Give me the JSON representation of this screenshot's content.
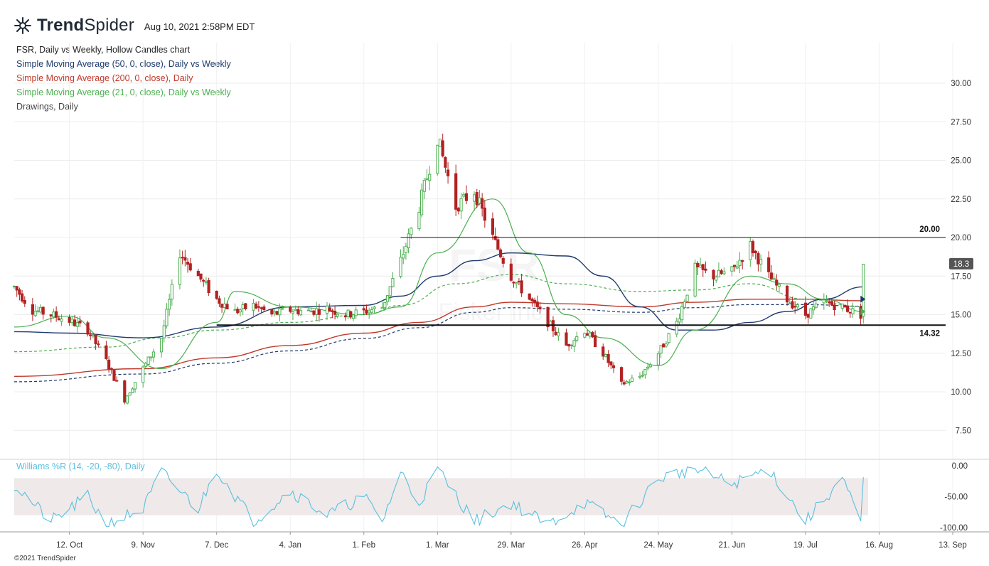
{
  "header": {
    "brand_bold": "Trend",
    "brand_light": "Spider",
    "timestamp": "Aug 10, 2021 2:58PM EDT"
  },
  "legend": [
    {
      "text": "FSR, Daily vs Weekly, Hollow Candles chart",
      "color": "#222222"
    },
    {
      "text": "Simple Moving Average (50, 0, close), Daily vs Weekly",
      "color": "#1f3a6e"
    },
    {
      "text": "Simple Moving Average (200, 0, close), Daily",
      "color": "#c0392b"
    },
    {
      "text": "Simple Moving Average (21, 0, close), Daily vs Weekly",
      "color": "#4caf50"
    },
    {
      "text": "Drawings, Daily",
      "color": "#444444"
    }
  ],
  "watermark": {
    "symbol": "FSR",
    "name": "Fisker Inc"
  },
  "footer": "©2021 TrendSpider",
  "oscillator_label": "Williams %R (14, -20, -80), Daily",
  "colors": {
    "up": "#4caf50",
    "down": "#b22222",
    "sma50": "#1f3a6e",
    "sma200": "#c0392b",
    "sma21": "#4caf50",
    "wr": "#5bc0de",
    "band": "#efe9e9"
  },
  "chart_data": [
    {
      "type": "candlestick",
      "ylim": [
        6,
        32
      ],
      "y_ticks": [
        "30.00",
        "27.50",
        "25.00",
        "22.50",
        "20.00",
        "17.50",
        "15.00",
        "12.50",
        "10.00",
        "7.50"
      ],
      "x_labels": [
        "12. Oct",
        "9. Nov",
        "7. Dec",
        "4. Jan",
        "1. Feb",
        "1. Mar",
        "29. Mar",
        "26. Apr",
        "24. May",
        "21. Jun",
        "19. Jul",
        "16. Aug",
        "13. Sep"
      ],
      "current_price": "18.3",
      "horizontal_lines": [
        {
          "value": 20.0,
          "label": "20.00"
        },
        {
          "value": 14.32,
          "label": "14.32"
        }
      ],
      "price_path": [
        [
          "2020-09-21",
          16.8
        ],
        [
          "2020-09-28",
          15.3
        ],
        [
          "2020-10-05",
          15.0
        ],
        [
          "2020-10-12",
          14.6
        ],
        [
          "2020-10-19",
          14.0
        ],
        [
          "2020-10-26",
          12.0
        ],
        [
          "2020-11-02",
          9.5
        ],
        [
          "2020-11-09",
          11.5
        ],
        [
          "2020-11-16",
          13.5
        ],
        [
          "2020-11-23",
          19.0
        ],
        [
          "2020-11-30",
          17.5
        ],
        [
          "2020-12-07",
          16.0
        ],
        [
          "2020-12-14",
          15.2
        ],
        [
          "2020-12-21",
          15.6
        ],
        [
          "2020-12-28",
          15.0
        ],
        [
          "2021-01-04",
          15.3
        ],
        [
          "2021-01-11",
          15.2
        ],
        [
          "2021-01-18",
          15.4
        ],
        [
          "2021-01-25",
          15.0
        ],
        [
          "2021-02-01",
          15.2
        ],
        [
          "2021-02-08",
          15.5
        ],
        [
          "2021-02-15",
          18.5
        ],
        [
          "2021-02-22",
          22.0
        ],
        [
          "2021-03-01",
          26.5
        ],
        [
          "2021-03-08",
          22.0
        ],
        [
          "2021-03-15",
          23.0
        ],
        [
          "2021-03-22",
          20.0
        ],
        [
          "2021-03-29",
          17.5
        ],
        [
          "2021-04-05",
          16.0
        ],
        [
          "2021-04-12",
          14.5
        ],
        [
          "2021-04-19",
          13.0
        ],
        [
          "2021-04-26",
          14.0
        ],
        [
          "2021-05-03",
          12.5
        ],
        [
          "2021-05-10",
          10.5
        ],
        [
          "2021-05-17",
          11.0
        ],
        [
          "2021-05-24",
          12.5
        ],
        [
          "2021-05-31",
          14.5
        ],
        [
          "2021-06-07",
          18.0
        ],
        [
          "2021-06-14",
          17.5
        ],
        [
          "2021-06-21",
          17.8
        ],
        [
          "2021-06-28",
          19.5
        ],
        [
          "2021-07-05",
          17.5
        ],
        [
          "2021-07-12",
          16.0
        ],
        [
          "2021-07-19",
          15.0
        ],
        [
          "2021-07-26",
          15.8
        ],
        [
          "2021-08-02",
          15.5
        ],
        [
          "2021-08-09",
          15.0
        ],
        [
          "2021-08-10",
          18.3
        ]
      ],
      "sma50": [
        [
          "2020-09-21",
          13.9
        ],
        [
          "2020-10-12",
          13.8
        ],
        [
          "2020-11-09",
          13.5
        ],
        [
          "2020-12-07",
          14.2
        ],
        [
          "2021-01-04",
          15.5
        ],
        [
          "2021-02-01",
          15.6
        ],
        [
          "2021-02-15",
          16.2
        ],
        [
          "2021-03-01",
          17.5
        ],
        [
          "2021-03-15",
          18.5
        ],
        [
          "2021-03-29",
          19.0
        ],
        [
          "2021-04-19",
          18.8
        ],
        [
          "2021-05-03",
          17.5
        ],
        [
          "2021-05-17",
          15.5
        ],
        [
          "2021-05-31",
          14.0
        ],
        [
          "2021-06-14",
          14.0
        ],
        [
          "2021-06-28",
          14.5
        ],
        [
          "2021-07-12",
          15.2
        ],
        [
          "2021-07-26",
          16.0
        ],
        [
          "2021-08-10",
          16.8
        ]
      ],
      "sma200": [
        [
          "2020-09-21",
          11.0
        ],
        [
          "2020-11-09",
          11.5
        ],
        [
          "2020-12-07",
          12.2
        ],
        [
          "2021-01-04",
          13.0
        ],
        [
          "2021-02-01",
          13.8
        ],
        [
          "2021-02-22",
          14.5
        ],
        [
          "2021-03-15",
          15.5
        ],
        [
          "2021-03-29",
          15.8
        ],
        [
          "2021-04-19",
          15.7
        ],
        [
          "2021-05-17",
          15.5
        ],
        [
          "2021-06-07",
          15.8
        ],
        [
          "2021-06-28",
          16.0
        ],
        [
          "2021-07-19",
          16.0
        ],
        [
          "2021-08-10",
          15.9
        ]
      ],
      "sma50_weekly": [
        [
          "2020-09-21",
          12.6
        ],
        [
          "2020-10-26",
          12.9
        ],
        [
          "2020-11-16",
          13.5
        ],
        [
          "2020-12-07",
          14.0
        ],
        [
          "2021-01-04",
          14.5
        ],
        [
          "2021-02-01",
          15.0
        ],
        [
          "2021-02-15",
          15.6
        ],
        [
          "2021-03-08",
          17.0
        ],
        [
          "2021-03-29",
          17.6
        ],
        [
          "2021-04-19",
          17.0
        ],
        [
          "2021-05-17",
          16.5
        ],
        [
          "2021-06-07",
          16.6
        ],
        [
          "2021-06-28",
          17.0
        ],
        [
          "2021-07-19",
          16.0
        ],
        [
          "2021-08-10",
          15.5
        ]
      ],
      "sma21": [
        [
          "2020-09-21",
          14.2
        ],
        [
          "2020-10-12",
          14.9
        ],
        [
          "2020-10-26",
          13.5
        ],
        [
          "2020-11-16",
          11.5
        ],
        [
          "2020-12-07",
          14.5
        ],
        [
          "2020-12-14",
          16.5
        ],
        [
          "2021-01-04",
          15.5
        ],
        [
          "2021-02-01",
          15.0
        ],
        [
          "2021-02-15",
          15.5
        ],
        [
          "2021-03-01",
          19.0
        ],
        [
          "2021-03-22",
          22.5
        ],
        [
          "2021-04-05",
          19.0
        ],
        [
          "2021-04-19",
          15.0
        ],
        [
          "2021-05-03",
          13.5
        ],
        [
          "2021-05-24",
          11.7
        ],
        [
          "2021-06-07",
          14.0
        ],
        [
          "2021-06-28",
          17.5
        ],
        [
          "2021-07-12",
          17.0
        ],
        [
          "2021-07-26",
          16.0
        ],
        [
          "2021-08-10",
          15.2
        ]
      ]
    },
    {
      "type": "line",
      "name": "Williams %R (14, -20, -80), Daily",
      "ylim": [
        -100,
        0
      ],
      "y_ticks": [
        "0.00",
        "-50.00",
        "-100.00"
      ],
      "band": [
        -80,
        -20
      ],
      "values": [
        [
          "2020-09-21",
          -30
        ],
        [
          "2020-10-05",
          -90
        ],
        [
          "2020-10-19",
          -50
        ],
        [
          "2020-10-26",
          -95
        ],
        [
          "2020-11-09",
          -70
        ],
        [
          "2020-11-16",
          -10
        ],
        [
          "2020-11-30",
          -70
        ],
        [
          "2020-12-07",
          -5
        ],
        [
          "2020-12-21",
          -90
        ],
        [
          "2021-01-04",
          -40
        ],
        [
          "2021-01-18",
          -80
        ],
        [
          "2021-02-01",
          -50
        ],
        [
          "2021-02-08",
          -90
        ],
        [
          "2021-02-15",
          -10
        ],
        [
          "2021-02-22",
          -60
        ],
        [
          "2021-03-01",
          -5
        ],
        [
          "2021-03-15",
          -90
        ],
        [
          "2021-03-29",
          -60
        ],
        [
          "2021-04-12",
          -95
        ],
        [
          "2021-04-26",
          -60
        ],
        [
          "2021-05-10",
          -95
        ],
        [
          "2021-05-24",
          -20
        ],
        [
          "2021-06-07",
          -5
        ],
        [
          "2021-06-21",
          -30
        ],
        [
          "2021-07-05",
          -5
        ],
        [
          "2021-07-19",
          -90
        ],
        [
          "2021-08-02",
          -20
        ],
        [
          "2021-08-09",
          -95
        ],
        [
          "2021-08-10",
          -20
        ]
      ]
    }
  ]
}
